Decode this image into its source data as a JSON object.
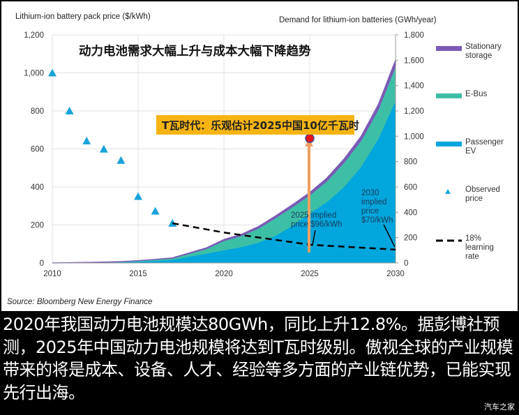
{
  "chart_data": {
    "type": "area",
    "title": "动力电池需求大幅上升与成本大幅下降趋势",
    "left_axis_label": "Lithium-ion battery pack price ($/kWh)",
    "right_axis_label": "Demand for lithium-ion batteries (GWh/year)",
    "x_ticks": [
      "2010",
      "2015",
      "2020",
      "2025",
      "2030"
    ],
    "xlim": [
      2010,
      2030
    ],
    "left_ticks": [
      "0",
      "200",
      "400",
      "600",
      "800",
      "1,000",
      "1,200"
    ],
    "left_ylim": [
      0,
      1200
    ],
    "right_ticks": [
      "0",
      "200",
      "400",
      "600",
      "800",
      "1,000",
      "1,200",
      "1,400",
      "1,600",
      "1,800"
    ],
    "right_ylim": [
      0,
      1800
    ],
    "grid": "vertical-and-horizontal",
    "x": [
      2010,
      2011,
      2012,
      2013,
      2014,
      2015,
      2016,
      2017,
      2018,
      2019,
      2020,
      2021,
      2022,
      2023,
      2024,
      2025,
      2026,
      2027,
      2028,
      2029,
      2030
    ],
    "series": [
      {
        "name": "Passenger EV",
        "axis": "right",
        "stacked": true,
        "color": "#00a6dc",
        "values": [
          0,
          1,
          2,
          4,
          6,
          10,
          16,
          24,
          50,
          75,
          100,
          125,
          160,
          215,
          295,
          390,
          480,
          600,
          760,
          980,
          1280
        ]
      },
      {
        "name": "E-Bus",
        "axis": "right",
        "stacked": true,
        "color": "#3dbfa6",
        "values": [
          0,
          1,
          2,
          3,
          4,
          8,
          12,
          14,
          26,
          39,
          77,
          90,
          114,
          141,
          149,
          147,
          168,
          194,
          210,
          234,
          276
        ]
      },
      {
        "name": "Stationary storage",
        "axis": "right",
        "stacked": true,
        "color": "#7b5bb5",
        "values": [
          0,
          0,
          0,
          0,
          0,
          0,
          0,
          2,
          4,
          6,
          8,
          10,
          12,
          14,
          16,
          18,
          22,
          26,
          30,
          36,
          44
        ]
      }
    ],
    "observed_price": {
      "name": "Observed price",
      "axis": "left",
      "color": "#1aa3d9",
      "x": [
        2010,
        2011,
        2012,
        2013,
        2014,
        2015,
        2016,
        2017
      ],
      "values": [
        1000,
        800,
        642,
        599,
        540,
        350,
        273,
        209
      ]
    },
    "learning_rate": {
      "name": "18% learning rate",
      "axis": "left",
      "color": "#000000",
      "x": [
        2017,
        2020,
        2025,
        2030
      ],
      "values": [
        209,
        160,
        96,
        70
      ]
    },
    "legend": [
      {
        "label": "Stationary storage",
        "marker": "bar",
        "color": "#7b5bb5"
      },
      {
        "label": "E-Bus",
        "marker": "bar",
        "color": "#3dbfa6"
      },
      {
        "label": "Passenger EV",
        "marker": "bar",
        "color": "#00a6dc"
      },
      {
        "label": "Observed price",
        "marker": "triangle",
        "color": "#1aa3d9"
      },
      {
        "label": "18% learning rate",
        "marker": "dash",
        "color": "#000000"
      }
    ],
    "legend_position": "right",
    "annotations": {
      "highlight": "T瓦时代：乐观估计2025中国10亿千瓦时",
      "highlight_point": {
        "x": 2025,
        "right_value": 1000,
        "color": "#e8141c"
      },
      "note_2025": [
        "2025 implied",
        "price $96/kWh"
      ],
      "note_2030": [
        "2030",
        "implied",
        "price",
        "$70/kWh"
      ]
    },
    "source": "Source: Bloomberg New Energy Finance"
  },
  "caption": "2020年我国动力电池规模达80GWh，同比上升12.8%。据彭博社预测，2025年中国动力电池规模将达到T瓦时级别。傲视全球的产业规模带来的将是成本、设备、人才、经验等多方面的产业链优势，已能实现先行出海。",
  "watermark": "汽车之家"
}
